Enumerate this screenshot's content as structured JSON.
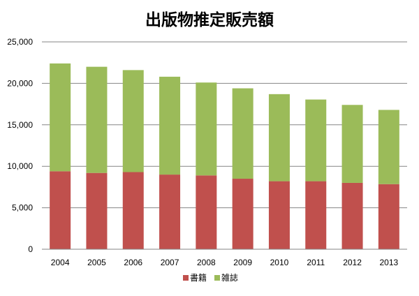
{
  "chart_data": {
    "type": "bar",
    "stacked": true,
    "title": "出版物推定販売額",
    "categories": [
      "2004",
      "2005",
      "2006",
      "2007",
      "2008",
      "2009",
      "2010",
      "2011",
      "2012",
      "2013"
    ],
    "series": [
      {
        "name": "書籍",
        "color": "#c0504d",
        "values": [
          9400,
          9200,
          9300,
          9000,
          8900,
          8500,
          8200,
          8200,
          8000,
          7850
        ]
      },
      {
        "name": "雑誌",
        "color": "#9bbb59",
        "values": [
          13000,
          12800,
          12300,
          11800,
          11200,
          10900,
          10500,
          9850,
          9400,
          8950
        ]
      }
    ],
    "ylim": [
      0,
      25000
    ],
    "yticks": [
      "0",
      "5,000",
      "10,000",
      "15,000",
      "20,000",
      "25,000"
    ],
    "grid": true,
    "legend_position": "bottom"
  }
}
